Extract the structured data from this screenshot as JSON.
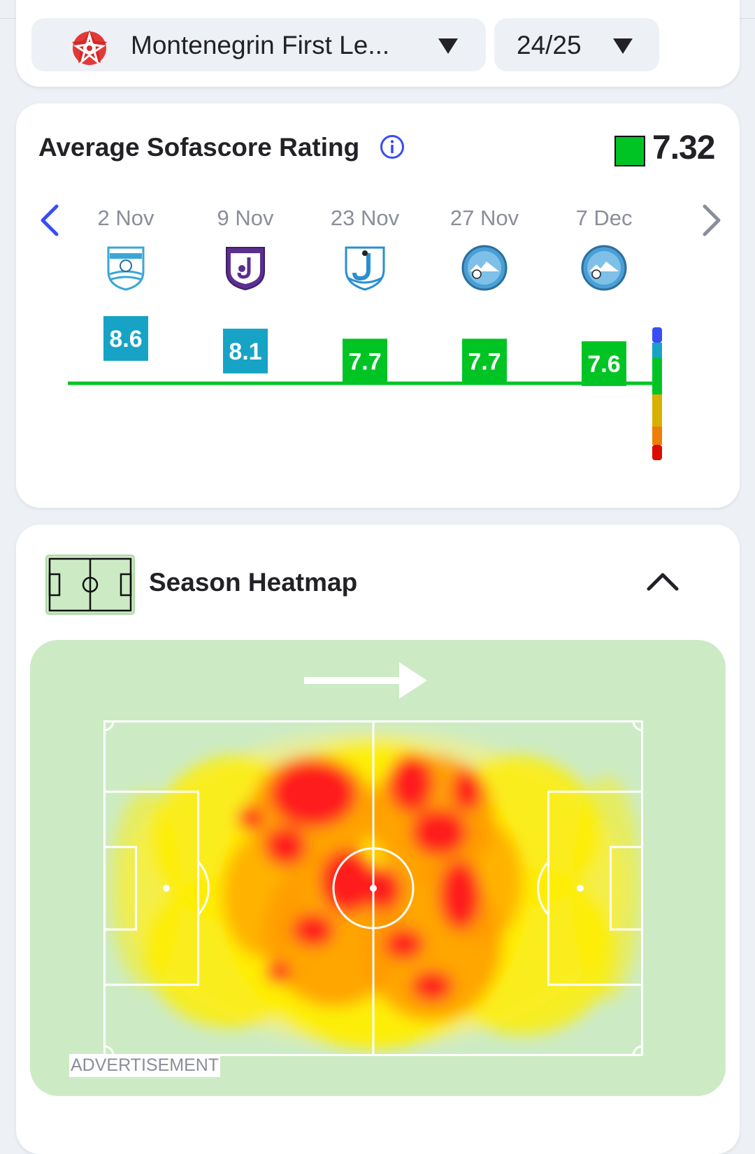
{
  "filters": {
    "league": "Montenegrin First Le...",
    "season": "24/25"
  },
  "rating": {
    "title": "Average Sofascore Rating",
    "average": "7.32",
    "average_color": "#00c424"
  },
  "matches": [
    {
      "date": "2 Nov",
      "rating": 8.6,
      "rating_label": "8.6",
      "color": "#16a3c6",
      "opponent_logo": "fk-kom-crest-icon"
    },
    {
      "date": "9 Nov",
      "rating": 8.1,
      "rating_label": "8.1",
      "color": "#16a3c6",
      "opponent_logo": "fk-jezero-crest-icon"
    },
    {
      "date": "23 Nov",
      "rating": 7.7,
      "rating_label": "7.7",
      "color": "#00c424",
      "opponent_logo": "fk-jedinstvo-crest-icon"
    },
    {
      "date": "27 Nov",
      "rating": 7.7,
      "rating_label": "7.7",
      "color": "#00c424",
      "opponent_logo": "fk-bokelj-crest-icon"
    },
    {
      "date": "7 Dec",
      "rating": 7.6,
      "rating_label": "7.6",
      "color": "#00c424",
      "opponent_logo": "fk-bokelj-crest-icon"
    }
  ],
  "rating_scale_colors": [
    "#374df5",
    "#16a3c6",
    "#00c424",
    "#d9af00",
    "#ed7e07",
    "#dc0c00"
  ],
  "heatmap": {
    "title": "Season Heatmap",
    "advertisement_label": "ADVERTISEMENT"
  },
  "colors": {
    "accent": "#374df5",
    "pitch_bg": "#ccebc4"
  }
}
